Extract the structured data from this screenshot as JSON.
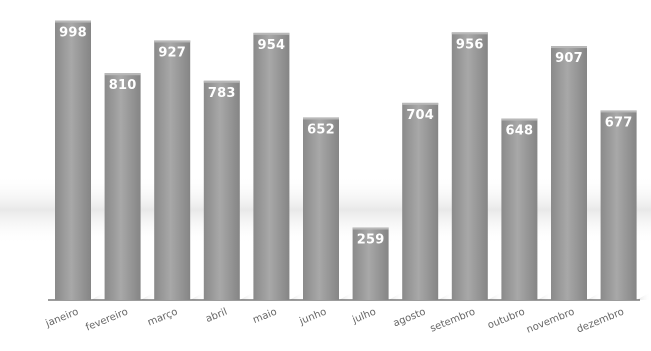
{
  "chart_data": {
    "type": "bar",
    "title": "",
    "xlabel": "",
    "ylabel": "",
    "categories": [
      "janeiro",
      "fevereiro",
      "março",
      "abril",
      "maio",
      "junho",
      "julho",
      "agosto",
      "setembro",
      "outubro",
      "novembro",
      "dezembro"
    ],
    "values": [
      998,
      810,
      927,
      783,
      954,
      652,
      259,
      704,
      956,
      648,
      907,
      677
    ],
    "ylim": [
      0,
      1000
    ],
    "grid": false,
    "legend": "none",
    "bar_color": "#9a9a9a",
    "value_label_color": "#ffffff",
    "axis_color": "#333333"
  }
}
